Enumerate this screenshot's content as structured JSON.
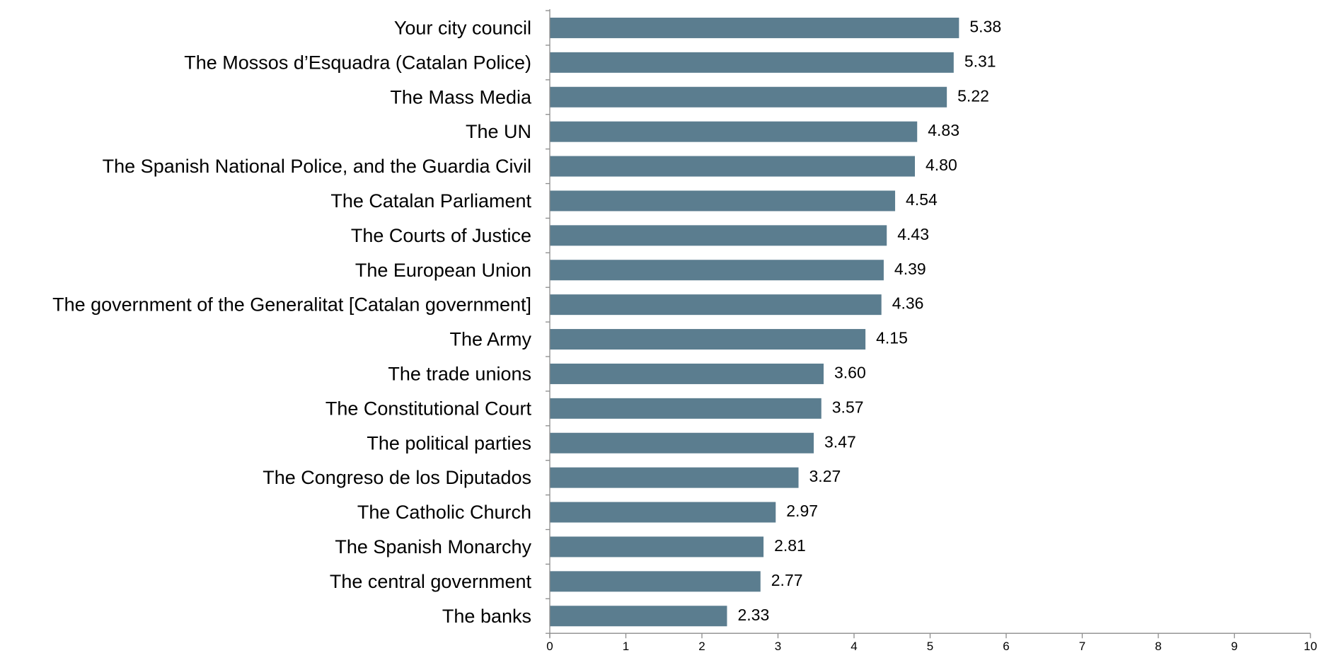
{
  "chart_data": {
    "type": "bar",
    "orientation": "horizontal",
    "categories": [
      "Your city council",
      "The Mossos d’Esquadra (Catalan Police)",
      "The Mass Media",
      "The UN",
      "The Spanish National Police, and the Guardia Civil",
      "The Catalan Parliament",
      "The Courts of Justice",
      "The European Union",
      "The government of the Generalitat [Catalan government]",
      "The Army",
      "The trade unions",
      "The Constitutional Court",
      "The political parties",
      "The Congreso de los Diputados",
      "The Catholic Church",
      "The Spanish Monarchy",
      "The central government",
      "The banks"
    ],
    "values": [
      5.38,
      5.31,
      5.22,
      4.83,
      4.8,
      4.54,
      4.43,
      4.39,
      4.36,
      4.15,
      3.6,
      3.57,
      3.47,
      3.27,
      2.97,
      2.81,
      2.77,
      2.33
    ],
    "value_labels": [
      "5.38",
      "5.31",
      "5.22",
      "4.83",
      "4.80",
      "4.54",
      "4.43",
      "4.39",
      "4.36",
      "4.15",
      "3.60",
      "3.57",
      "3.47",
      "3.27",
      "2.97",
      "2.81",
      "2.77",
      "2.33"
    ],
    "xlim": [
      0,
      10
    ],
    "x_ticks": [
      0,
      1,
      2,
      3,
      4,
      5,
      6,
      7,
      8,
      9,
      10
    ],
    "x_tick_labels": [
      "0",
      "1",
      "2",
      "3",
      "4",
      "5",
      "6",
      "7",
      "8",
      "9",
      "10"
    ],
    "title": "",
    "xlabel": "",
    "ylabel": "",
    "grid": false,
    "legend": "none",
    "bar_color": "#5b7d8f",
    "axis_color": "#8c8c8c",
    "text_color": "#000000"
  }
}
